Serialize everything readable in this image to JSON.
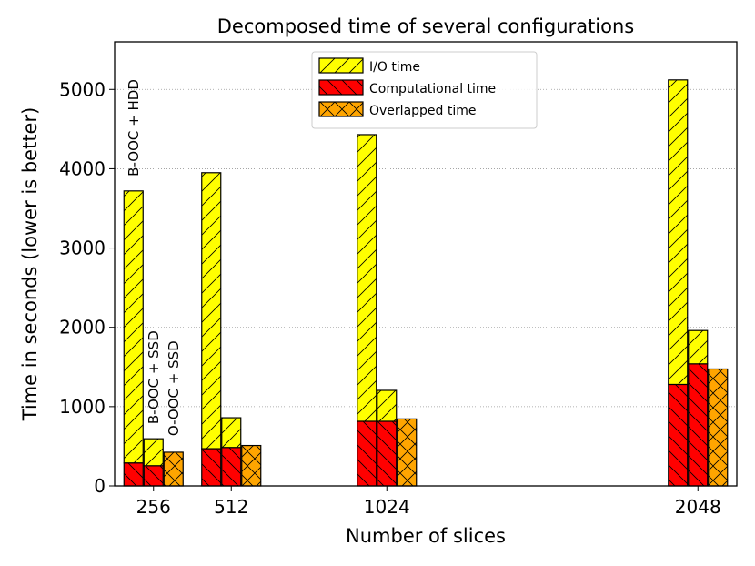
{
  "chart_data": {
    "type": "bar",
    "stacked": true,
    "title": "Decomposed time of several configurations",
    "xlabel": "Number of slices",
    "ylabel": "Time in seconds (lower is better)",
    "ylim": [
      0,
      5600
    ],
    "yticks": [
      0,
      1000,
      2000,
      3000,
      4000,
      5000
    ],
    "grid": "y-dotted",
    "x_scale": "linear",
    "xlim": [
      128,
      2176
    ],
    "categories": [
      "256",
      "512",
      "1024",
      "2048"
    ],
    "x": [
      256,
      512,
      1024,
      2048
    ],
    "configurations": [
      "B-OOC + HDD",
      "B-OOC + SSD",
      "O-OOC + SSD"
    ],
    "bars": [
      {
        "slices": 256,
        "config": "B-OOC + HDD",
        "computational": 290,
        "io": 3430
      },
      {
        "slices": 256,
        "config": "B-OOC + SSD",
        "computational": 255,
        "io": 340
      },
      {
        "slices": 256,
        "config": "O-OOC + SSD",
        "overlapped": 425
      },
      {
        "slices": 512,
        "config": "B-OOC + HDD",
        "computational": 470,
        "io": 3480
      },
      {
        "slices": 512,
        "config": "B-OOC + SSD",
        "computational": 485,
        "io": 375
      },
      {
        "slices": 512,
        "config": "O-OOC + SSD",
        "overlapped": 510
      },
      {
        "slices": 1024,
        "config": "B-OOC + HDD",
        "computational": 815,
        "io": 3615
      },
      {
        "slices": 1024,
        "config": "B-OOC + SSD",
        "computational": 815,
        "io": 390
      },
      {
        "slices": 1024,
        "config": "O-OOC + SSD",
        "overlapped": 845
      },
      {
        "slices": 2048,
        "config": "B-OOC + HDD",
        "computational": 1280,
        "io": 3840
      },
      {
        "slices": 2048,
        "config": "B-OOC + SSD",
        "computational": 1540,
        "io": 420
      },
      {
        "slices": 2048,
        "config": "O-OOC + SSD",
        "overlapped": 1475
      }
    ],
    "legend": {
      "position": "top-center",
      "entries": [
        {
          "key": "io",
          "label": "I/O time",
          "color": "#ffff00",
          "hatch": "diagonal"
        },
        {
          "key": "computational",
          "label": "Computational time",
          "color": "#ff0000",
          "hatch": "backslash"
        },
        {
          "key": "overlapped",
          "label": "Overlapped time",
          "color": "#ffa500",
          "hatch": "cross"
        }
      ]
    },
    "annotations": [
      "B-OOC + HDD",
      "B-OOC + SSD",
      "O-OOC + SSD"
    ]
  }
}
